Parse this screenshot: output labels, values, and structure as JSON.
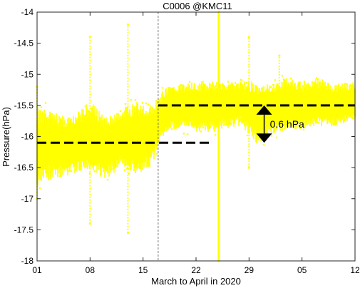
{
  "chart_data": {
    "type": "scatter",
    "title": "C0006 @KMC11",
    "xlabel": "March to April in 2020",
    "ylabel": "Pressure(hPa)",
    "xlim": [
      "2020-03-01",
      "2020-04-12"
    ],
    "ylim": [
      -18,
      -14
    ],
    "x_ticks": [
      "2020-03-01",
      "2020-03-08",
      "2020-03-15",
      "2020-03-22",
      "2020-03-29",
      "2020-04-05",
      "2020-04-12"
    ],
    "x_tick_labels": [
      "01",
      "08",
      "15",
      "22",
      "29",
      "05",
      "12"
    ],
    "y_ticks": [
      -14,
      -14.5,
      -15,
      -15.5,
      -16,
      -16.5,
      -17,
      -17.5,
      -18
    ],
    "y_tick_labels": [
      "-14",
      "-14.5",
      "-15",
      "-15.5",
      "-16",
      "-16.5",
      "-17",
      "-17.5",
      "-18"
    ],
    "grid": false,
    "series_color": "#ffff00",
    "series": [
      {
        "x": [
          "2020-03-01",
          "2020-03-03",
          "2020-03-05",
          "2020-03-08",
          "2020-03-10",
          "2020-03-12",
          "2020-03-14",
          "2020-03-16",
          "2020-03-18",
          "2020-03-20",
          "2020-03-22",
          "2020-03-24",
          "2020-03-26",
          "2020-03-28",
          "2020-03-30",
          "2020-04-01",
          "2020-04-03",
          "2020-04-05",
          "2020-04-07",
          "2020-04-09",
          "2020-04-12"
        ],
        "y_center": [
          -16.2,
          -16.1,
          -16.2,
          -16.05,
          -16.2,
          -15.95,
          -16.05,
          -16.0,
          -15.55,
          -15.5,
          -15.5,
          -15.5,
          -15.45,
          -15.45,
          -15.6,
          -15.55,
          -15.4,
          -15.5,
          -15.45,
          -15.5,
          -15.45
        ],
        "y_low": [
          -16.9,
          -16.8,
          -16.7,
          -16.6,
          -16.8,
          -16.6,
          -16.7,
          -16.6,
          -16.0,
          -15.95,
          -16.0,
          -16.0,
          -15.95,
          -15.9,
          -16.2,
          -16.1,
          -16.0,
          -15.95,
          -15.9,
          -15.9,
          -15.8
        ],
        "y_high": [
          -15.4,
          -15.5,
          -15.6,
          -15.3,
          -15.6,
          -15.5,
          -15.3,
          -15.4,
          -15.15,
          -15.1,
          -15.05,
          -15.0,
          -15.1,
          -15.0,
          -15.05,
          -15.05,
          -15.0,
          -15.05,
          -15.0,
          -15.1,
          -15.05
        ]
      }
    ],
    "spikes": [
      {
        "x": "2020-03-01",
        "y_low": -17.0,
        "y_high": -15.2
      },
      {
        "x": "2020-03-08",
        "y_low": -17.4,
        "y_high": -14.4
      },
      {
        "x": "2020-03-13",
        "y_low": -17.55,
        "y_high": -14.2
      },
      {
        "x": "2020-03-25",
        "y_low": -18.0,
        "y_high": -14.0
      },
      {
        "x": "2020-03-29",
        "y_low": -16.5,
        "y_high": -14.4
      },
      {
        "x": "2020-04-02",
        "y_low": -15.8,
        "y_high": -14.7
      }
    ],
    "vertical_lines": [
      {
        "x": "2020-03-17",
        "style": "dotted",
        "color": "#555555"
      },
      {
        "x": "2020-03-25",
        "style": "solid",
        "color": "#ffff00"
      }
    ],
    "mean_lines": [
      {
        "x_start": "2020-03-01",
        "x_end": "2020-03-24",
        "y": -16.1
      },
      {
        "x_start": "2020-03-17",
        "x_end": "2020-04-12",
        "y": -15.5
      }
    ],
    "annotation": {
      "text": "0.6 hPa",
      "x": "2020-03-31",
      "y_from": -15.5,
      "y_to": -16.1
    }
  }
}
